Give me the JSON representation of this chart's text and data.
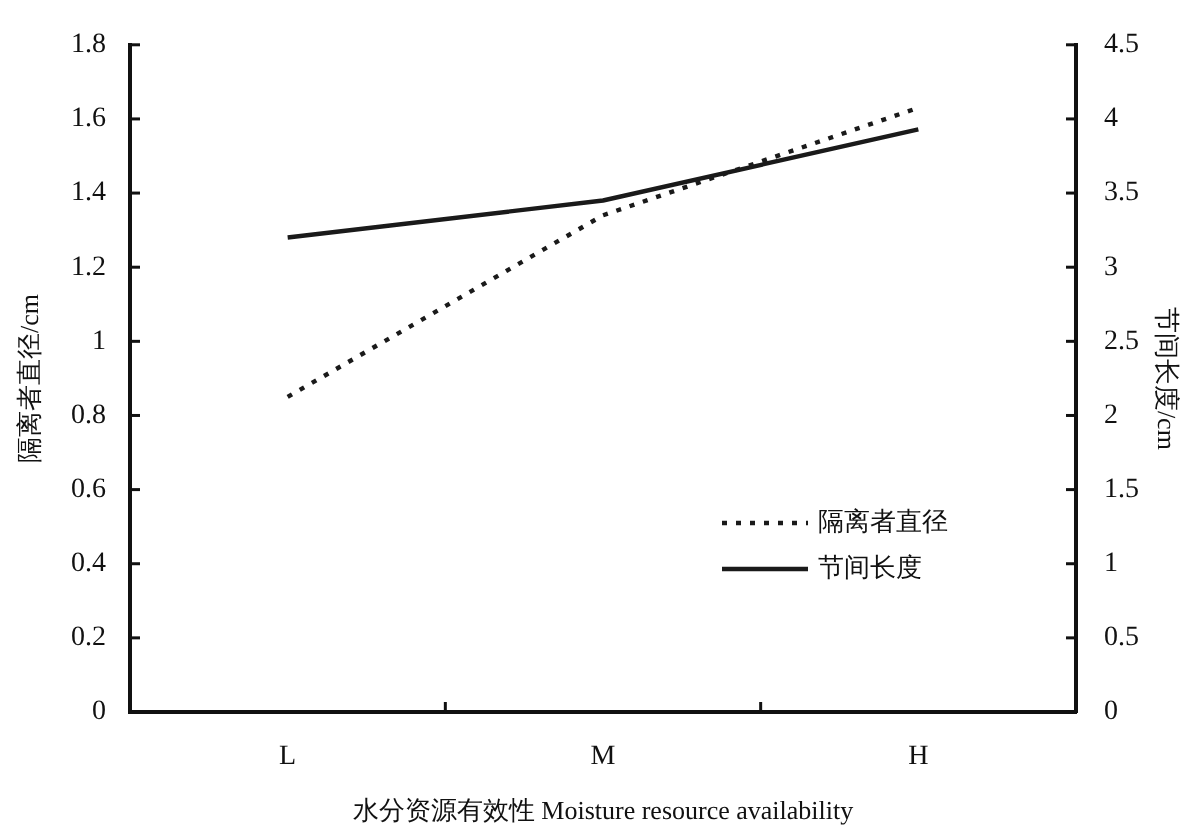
{
  "chart_data": {
    "type": "line",
    "xlabel": "水分资源有效性 Moisture resource availability",
    "ylabel": "隔离者直径/cm",
    "y2label": "节间长度/cm",
    "categories": [
      "L",
      "M",
      "H"
    ],
    "series": [
      {
        "name": "隔离者直径",
        "color": "#1a1a1a",
        "values": [
          0.85,
          1.34,
          1.63
        ],
        "line_style": "dotted"
      },
      {
        "name": "节间长度",
        "color": "#1a1a1a",
        "values": [
          3.2,
          3.45,
          3.93
        ],
        "axis": "y2",
        "line_style": "solid"
      }
    ],
    "ylim": [
      0,
      1.8
    ],
    "yticks": [
      0,
      0.2,
      0.4,
      0.6,
      0.8,
      1,
      1.2,
      1.4,
      1.6,
      1.8
    ],
    "y2lim": [
      0,
      4.5
    ],
    "y2ticks": [
      0,
      0.5,
      1,
      1.5,
      2,
      2.5,
      3,
      3.5,
      4,
      4.5
    ],
    "legend": "bottom right",
    "grid": false,
    "marker": "none"
  }
}
